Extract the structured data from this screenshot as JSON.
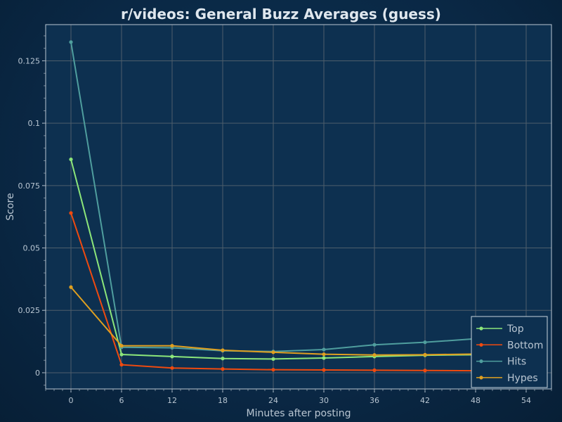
{
  "chart_data": {
    "type": "line",
    "title": "r/videos: General Buzz Averages (guess)",
    "xlabel": "Minutes after posting",
    "ylabel": "Score",
    "x": [
      0,
      6,
      12,
      18,
      24,
      30,
      36,
      42,
      48,
      54
    ],
    "xlim": [
      -3,
      57
    ],
    "ylim": [
      -0.0065,
      0.1395
    ],
    "xticks": [
      "0",
      "6",
      "12",
      "18",
      "24",
      "30",
      "36",
      "42",
      "48",
      "54"
    ],
    "yticks": [
      "0",
      "0.025",
      "0.05",
      "0.075",
      "0.1",
      "0.125"
    ],
    "grid": true,
    "legend_position": "bottom-right",
    "series": [
      {
        "name": "Top",
        "color": "#8ce67a",
        "values": [
          0.0855,
          0.0073,
          0.0065,
          0.0057,
          0.0055,
          0.0059,
          0.0065,
          0.007,
          0.0072,
          0.0075
        ]
      },
      {
        "name": "Bottom",
        "color": "#f04a0f",
        "values": [
          0.064,
          0.0032,
          0.0019,
          0.0015,
          0.0012,
          0.0011,
          0.001,
          0.0009,
          0.0008,
          0.0008
        ]
      },
      {
        "name": "Hits",
        "color": "#4f9e9e",
        "values": [
          0.1325,
          0.0102,
          0.01,
          0.0088,
          0.0085,
          0.0093,
          0.0112,
          0.0122,
          0.0136,
          0.014
        ]
      },
      {
        "name": "Hypes",
        "color": "#e0a020",
        "values": [
          0.0343,
          0.0108,
          0.0108,
          0.009,
          0.0082,
          0.0074,
          0.0071,
          0.0072,
          0.0075,
          0.0078
        ]
      }
    ]
  }
}
